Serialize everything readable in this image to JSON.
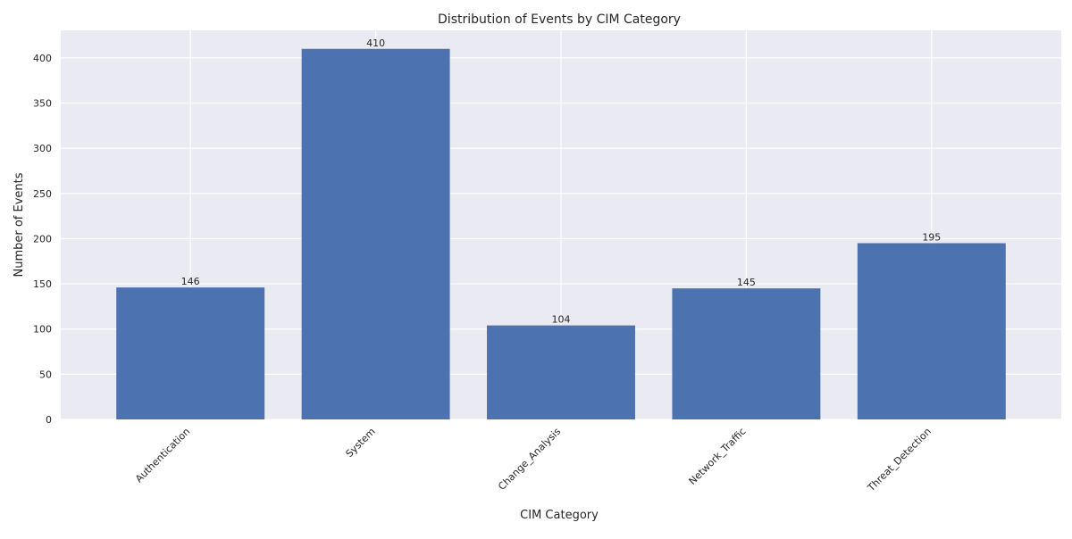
{
  "chart_data": {
    "type": "bar",
    "title": "Distribution of Events by CIM Category",
    "xlabel": "CIM Category",
    "ylabel": "Number of Events",
    "categories": [
      "Authentication",
      "System",
      "Change_Analysis",
      "Network_Traffic",
      "Threat_Detection"
    ],
    "values": [
      146,
      410,
      104,
      145,
      195
    ],
    "data_labels": [
      "146",
      "410",
      "104",
      "145",
      "195"
    ],
    "yticks": [
      0,
      50,
      100,
      150,
      200,
      250,
      300,
      350,
      400
    ],
    "ylim": [
      0,
      430.5
    ],
    "grid": true,
    "x_tick_rotation": "45 degrees",
    "colors": {
      "bar": "#4c72b0",
      "plot_background": "#eaeaf2",
      "grid": "#ffffff",
      "text": "#262626"
    }
  }
}
